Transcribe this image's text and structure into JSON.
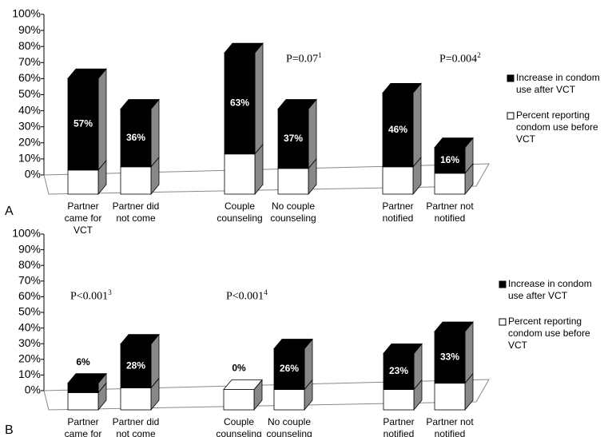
{
  "chart_data": [
    {
      "type": "bar",
      "stacked": true,
      "panel_label": "A",
      "categories": [
        "Partner came for VCT",
        "Partner did not come",
        "Couple counseling",
        "No couple counseling",
        "Partner notified",
        "Partner not notified"
      ],
      "series": [
        {
          "name": "Percent reporting condom use before VCT",
          "color": "#ffffff",
          "values": [
            15,
            17,
            25,
            16,
            17,
            13
          ]
        },
        {
          "name": "Increase in condom use after VCT",
          "color": "#000000",
          "values": [
            57,
            36,
            63,
            37,
            46,
            16
          ],
          "value_labels": [
            "57%",
            "36%",
            "63%",
            "37%",
            "46%",
            "16%"
          ]
        }
      ],
      "ylim": [
        0,
        100
      ],
      "yticks": [
        {
          "value": 0,
          "label": "0%"
        },
        {
          "value": 10,
          "label": "10%"
        },
        {
          "value": 20,
          "label": "20%"
        },
        {
          "value": 30,
          "label": "30%"
        },
        {
          "value": 40,
          "label": "40%"
        },
        {
          "value": 50,
          "label": "50%"
        },
        {
          "value": 60,
          "label": "60%"
        },
        {
          "value": 70,
          "label": "70%"
        },
        {
          "value": 80,
          "label": "80%"
        },
        {
          "value": 90,
          "label": "90%"
        },
        {
          "value": 100,
          "label": "100%"
        }
      ],
      "annotations": [
        {
          "text": "P=0.07",
          "superscript": "1"
        },
        {
          "text": "P=0.004",
          "superscript": "2"
        }
      ]
    },
    {
      "type": "bar",
      "stacked": true,
      "panel_label": "B",
      "categories": [
        "Partner came for VCT",
        "Partner did not come",
        "Couple counseling",
        "No couple counseling",
        "Partner notified",
        "Partner not notified"
      ],
      "series": [
        {
          "name": "Percent reporting condom use before VCT",
          "color": "#ffffff",
          "values": [
            11,
            14,
            13,
            13,
            13,
            17
          ]
        },
        {
          "name": "Increase in condom use after VCT",
          "color": "#000000",
          "values": [
            6,
            28,
            0,
            26,
            23,
            33
          ],
          "value_labels": [
            "6%",
            "28%",
            "0%",
            "26%",
            "23%",
            "33%"
          ]
        }
      ],
      "ylim": [
        0,
        100
      ],
      "yticks": [
        {
          "value": 0,
          "label": "0%"
        },
        {
          "value": 10,
          "label": "10%"
        },
        {
          "value": 20,
          "label": "20%"
        },
        {
          "value": 30,
          "label": "30%"
        },
        {
          "value": 40,
          "label": "40%"
        },
        {
          "value": 50,
          "label": "50%"
        },
        {
          "value": 60,
          "label": "60%"
        },
        {
          "value": 70,
          "label": "70%"
        },
        {
          "value": 80,
          "label": "80%"
        },
        {
          "value": 90,
          "label": "90%"
        },
        {
          "value": 100,
          "label": "100%"
        }
      ],
      "annotations": [
        {
          "text": "P<0.001",
          "superscript": "3"
        },
        {
          "text": "P<0.001",
          "superscript": "4"
        }
      ]
    }
  ]
}
